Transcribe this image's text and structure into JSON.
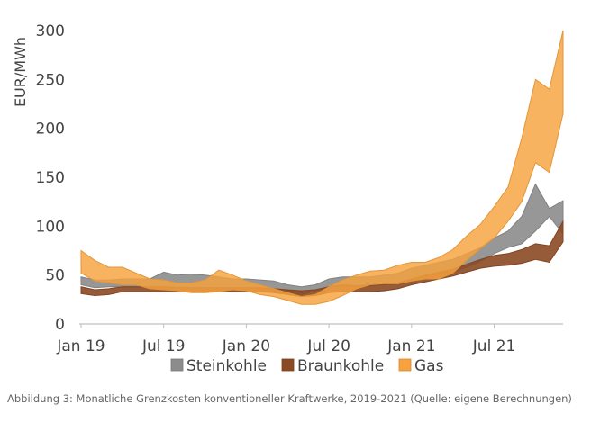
{
  "caption": "Abbildung 3: Monatliche Grenzkosten konventioneller Kraftwerke, 2019-2021 (Quelle: eigene Berechnungen)",
  "chart_data": {
    "type": "area",
    "title": "",
    "xlabel": "",
    "ylabel": "EUR/MWh",
    "ylim": [
      0,
      300
    ],
    "yticks": [
      0,
      50,
      100,
      150,
      200,
      250,
      300
    ],
    "x": [
      "2019-01",
      "2019-02",
      "2019-03",
      "2019-04",
      "2019-05",
      "2019-06",
      "2019-07",
      "2019-08",
      "2019-09",
      "2019-10",
      "2019-11",
      "2019-12",
      "2020-01",
      "2020-02",
      "2020-03",
      "2020-04",
      "2020-05",
      "2020-06",
      "2020-07",
      "2020-08",
      "2020-09",
      "2020-10",
      "2020-11",
      "2020-12",
      "2021-01",
      "2021-02",
      "2021-03",
      "2021-04",
      "2021-05",
      "2021-06",
      "2021-07",
      "2021-08",
      "2021-09",
      "2021-10",
      "2021-11",
      "2021-12"
    ],
    "xticks": [
      {
        "index": 0,
        "label": "Jan 19"
      },
      {
        "index": 6,
        "label": "Jul 19"
      },
      {
        "index": 12,
        "label": "Jan 20"
      },
      {
        "index": 18,
        "label": "Jul 20"
      },
      {
        "index": 24,
        "label": "Jan 21"
      },
      {
        "index": 30,
        "label": "Jul 21"
      }
    ],
    "grid": false,
    "legend_position": "bottom",
    "series": [
      {
        "name": "Steinkohle",
        "color": "#8c8c8c",
        "low": [
          40,
          37,
          38,
          38,
          38,
          38,
          38,
          38,
          37,
          37,
          37,
          37,
          37,
          36,
          33,
          31,
          30,
          34,
          38,
          39,
          39,
          39,
          40,
          41,
          45,
          48,
          50,
          53,
          58,
          64,
          72,
          78,
          82,
          95,
          110,
          92
        ],
        "high": [
          48,
          45,
          45,
          46,
          46,
          46,
          53,
          50,
          51,
          50,
          48,
          46,
          46,
          45,
          44,
          40,
          38,
          40,
          46,
          48,
          48,
          48,
          50,
          52,
          57,
          60,
          63,
          66,
          72,
          78,
          88,
          95,
          110,
          143,
          118,
          126
        ]
      },
      {
        "name": "Braunkohle",
        "color": "#8b4a24",
        "low": [
          31,
          29,
          30,
          33,
          33,
          33,
          33,
          33,
          33,
          33,
          33,
          33,
          33,
          33,
          32,
          30,
          28,
          29,
          32,
          33,
          33,
          33,
          34,
          36,
          40,
          43,
          46,
          49,
          53,
          57,
          59,
          60,
          62,
          66,
          63,
          84
        ],
        "high": [
          38,
          35,
          36,
          38,
          38,
          38,
          38,
          37,
          37,
          37,
          37,
          37,
          37,
          37,
          36,
          35,
          34,
          35,
          38,
          40,
          39,
          40,
          41,
          42,
          46,
          50,
          53,
          56,
          61,
          66,
          70,
          72,
          76,
          82,
          80,
          105
        ]
      },
      {
        "name": "Gas",
        "color": "#f7a23e",
        "low": [
          52,
          44,
          42,
          40,
          40,
          36,
          35,
          34,
          32,
          32,
          33,
          35,
          34,
          30,
          28,
          24,
          20,
          20,
          23,
          29,
          36,
          40,
          41,
          41,
          44,
          46,
          46,
          52,
          65,
          77,
          88,
          105,
          125,
          165,
          155,
          215
        ],
        "high": [
          75,
          65,
          58,
          58,
          52,
          46,
          45,
          42,
          42,
          45,
          55,
          50,
          44,
          40,
          36,
          32,
          28,
          30,
          38,
          45,
          50,
          54,
          55,
          60,
          63,
          63,
          68,
          76,
          90,
          102,
          120,
          140,
          190,
          250,
          240,
          300
        ]
      }
    ]
  }
}
